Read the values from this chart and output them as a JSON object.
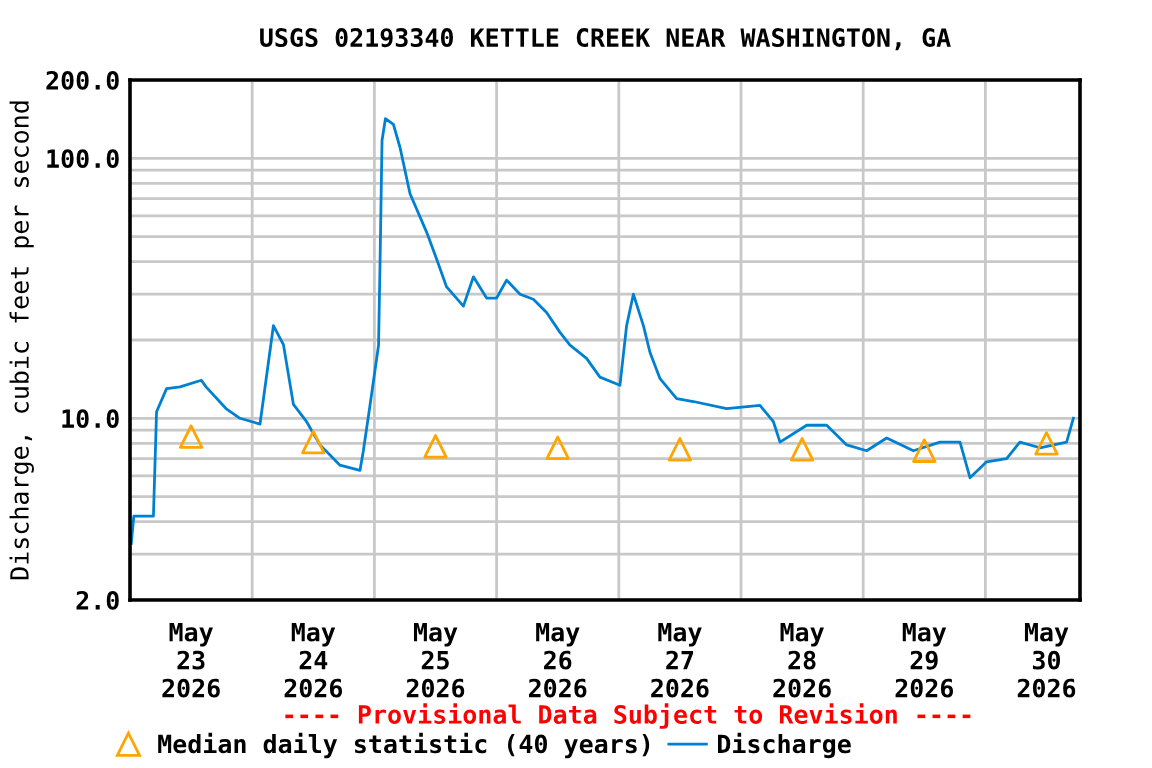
{
  "chart_data": {
    "type": "line",
    "title": "USGS 02193340 KETTLE CREEK NEAR WASHINGTON, GA",
    "ylabel": "Discharge, cubic feet per second",
    "annotations": [
      "---- Provisional Data Subject to Revision ----"
    ],
    "log": "y",
    "grid": true,
    "legend": "bottom",
    "xlim": [
      "2026-05-23T00:00",
      "2026-05-30T18:35"
    ],
    "xticks": [
      {
        "value": "2026-05-23T12:00",
        "label": "May\n23\n2026"
      },
      {
        "value": "2026-05-24T12:00",
        "label": "May\n24\n2026"
      },
      {
        "value": "2026-05-25T12:00",
        "label": "May\n25\n2026"
      },
      {
        "value": "2026-05-26T12:00",
        "label": "May\n26\n2026"
      },
      {
        "value": "2026-05-27T12:00",
        "label": "May\n27\n2026"
      },
      {
        "value": "2026-05-28T12:00",
        "label": "May\n28\n2026"
      },
      {
        "value": "2026-05-29T12:00",
        "label": "May\n29\n2026"
      },
      {
        "value": "2026-05-30T12:00",
        "label": "May\n30\n2026"
      },
      {
        "value": "2026-05-24T00:00",
        "label": null
      },
      {
        "value": "2026-05-25T00:00",
        "label": null
      },
      {
        "value": "2026-05-26T00:00",
        "label": null
      },
      {
        "value": "2026-05-27T00:00",
        "label": null
      },
      {
        "value": "2026-05-28T00:00",
        "label": null
      },
      {
        "value": "2026-05-29T00:00",
        "label": null
      },
      {
        "value": "2026-05-30T00:00",
        "label": null
      }
    ],
    "ylim": [
      2,
      200
    ],
    "yticks": [
      {
        "value": 2,
        "label": "2.0"
      },
      {
        "value": 10,
        "label": "10.0"
      },
      {
        "value": 100,
        "label": "100.0"
      },
      {
        "value": 200,
        "label": "200.0"
      },
      {
        "value": 3,
        "label": null
      },
      {
        "value": 4,
        "label": null
      },
      {
        "value": 5,
        "label": null
      },
      {
        "value": 6,
        "label": null
      },
      {
        "value": 7,
        "label": null
      },
      {
        "value": 8,
        "label": null
      },
      {
        "value": 9,
        "label": null
      },
      {
        "value": 20,
        "label": null
      },
      {
        "value": 30,
        "label": null
      },
      {
        "value": 40,
        "label": null
      },
      {
        "value": 50,
        "label": null
      },
      {
        "value": 60,
        "label": null
      },
      {
        "value": 70,
        "label": null
      },
      {
        "value": 80,
        "label": null
      },
      {
        "value": 90,
        "label": null
      }
    ],
    "series": [
      {
        "name": "Median daily statistic (40 years)",
        "type": "scatter",
        "marker": "triangle",
        "color": "#ffa500",
        "x": [
          "2026-05-23T12:00",
          "2026-05-24T12:00",
          "2026-05-25T12:00",
          "2026-05-26T12:00",
          "2026-05-27T12:00",
          "2026-05-28T12:00",
          "2026-05-29T12:00",
          "2026-05-30T12:00"
        ],
        "values": [
          8.5,
          8.1,
          7.8,
          7.7,
          7.6,
          7.6,
          7.5,
          8.0
        ]
      },
      {
        "name": "Discharge",
        "marker": "none",
        "line_style": "solid",
        "color": "#0080d0",
        "x": [
          "2026-05-23T00:15",
          "2026-05-23T00:45",
          "2026-05-23T04:36",
          "2026-05-23T05:13",
          "2026-05-23T07:11",
          "2026-05-23T09:50",
          "2026-05-23T14:01",
          "2026-05-23T14:56",
          "2026-05-23T18:51",
          "2026-05-23T21:36",
          "2026-05-24T01:32",
          "2026-05-24T04:10",
          "2026-05-24T06:08",
          "2026-05-24T08:06",
          "2026-05-24T10:41",
          "2026-05-24T13:19",
          "2026-05-24T15:57",
          "2026-05-24T17:14",
          "2026-05-24T21:10",
          "2026-05-24T21:50",
          "2026-05-24T23:08",
          "2026-05-25T00:49",
          "2026-05-25T01:06",
          "2026-05-25T01:30",
          "2026-05-25T02:10",
          "2026-05-25T03:44",
          "2026-05-25T05:02",
          "2026-05-25T07:00",
          "2026-05-25T10:15",
          "2026-05-25T12:13",
          "2026-05-25T14:11",
          "2026-05-25T17:29",
          "2026-05-25T19:27",
          "2026-05-25T22:02",
          "2026-05-26T00:00",
          "2026-05-26T01:58",
          "2026-05-26T04:36",
          "2026-05-26T07:13",
          "2026-05-26T09:49",
          "2026-05-26T12:27",
          "2026-05-26T14:25",
          "2026-05-26T17:40",
          "2026-05-26T20:18",
          "2026-05-27T00:14",
          "2026-05-27T01:32",
          "2026-05-27T02:52",
          "2026-05-27T04:50",
          "2026-05-27T06:08",
          "2026-05-27T08:06",
          "2026-05-27T11:22",
          "2026-05-27T14:39",
          "2026-05-27T21:11",
          "2026-05-28T03:44",
          "2026-05-28T06:22",
          "2026-05-28T07:40",
          "2026-05-28T12:54",
          "2026-05-28T16:50",
          "2026-05-28T20:46",
          "2026-05-29T00:41",
          "2026-05-29T04:37",
          "2026-05-29T09:52",
          "2026-05-29T15:05",
          "2026-05-29T19:01",
          "2026-05-29T20:59",
          "2026-05-30T00:14",
          "2026-05-30T04:10",
          "2026-05-30T06:47",
          "2026-05-30T10:43",
          "2026-05-30T15:57",
          "2026-05-30T17:17"
        ],
        "values": [
          3.3,
          4.2,
          4.2,
          10.6,
          13,
          13.2,
          14,
          13.2,
          10.9,
          10,
          9.5,
          22.7,
          19.2,
          11.3,
          9.7,
          7.9,
          7.0,
          6.6,
          6.3,
          7.5,
          11.2,
          19.1,
          38.5,
          117,
          142,
          135,
          110,
          73,
          52,
          41,
          32,
          27,
          35,
          29,
          29,
          34,
          30,
          28.7,
          25.5,
          21.4,
          19.1,
          17,
          14.4,
          13.4,
          22.7,
          30,
          22.7,
          17.9,
          14.2,
          11.9,
          11.6,
          10.9,
          11.2,
          9.7,
          8.1,
          9.4,
          9.4,
          7.9,
          7.5,
          8.4,
          7.5,
          8.1,
          8.1,
          5.9,
          6.8,
          7.0,
          8.1,
          7.7,
          8.1,
          10
        ]
      }
    ]
  }
}
